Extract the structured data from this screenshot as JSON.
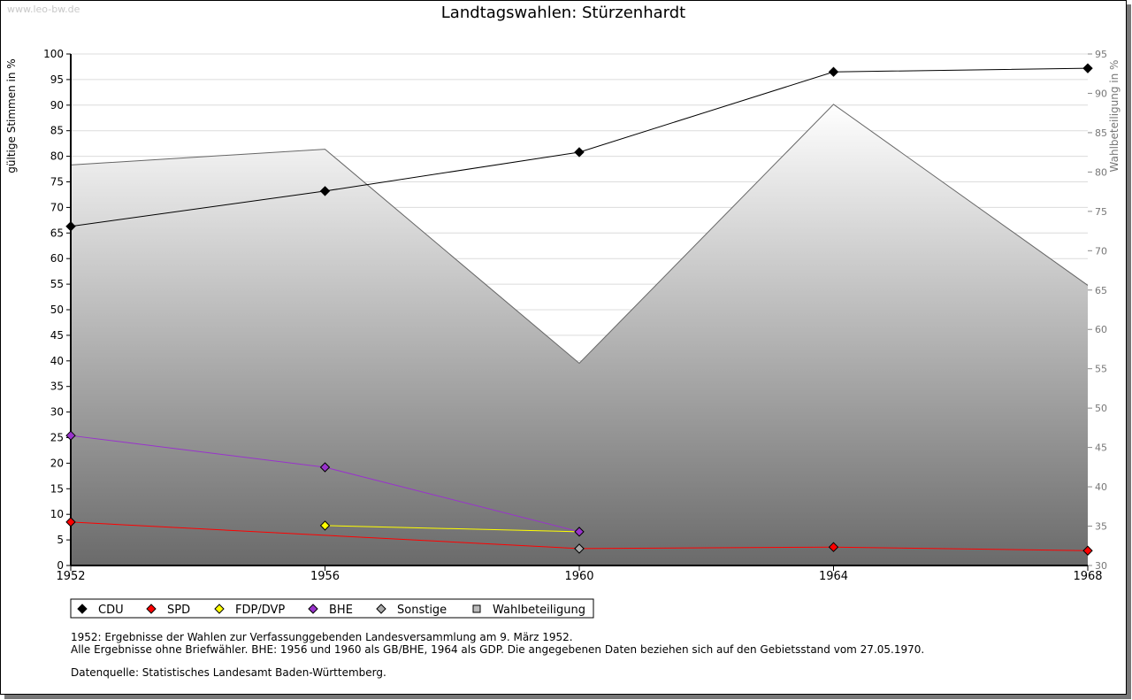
{
  "watermark": "www.leo-bw.de",
  "chart_data": {
    "type": "line",
    "title": "Landtagswahlen: Stürzenhardt",
    "ylabel": "gültige Stimmen in %",
    "y2label": "Wahlbeteiligung in %",
    "ylim": [
      0,
      100
    ],
    "y2lim": [
      30,
      95
    ],
    "yticks": [
      0,
      5,
      10,
      15,
      20,
      25,
      30,
      35,
      40,
      45,
      50,
      55,
      60,
      65,
      70,
      75,
      80,
      85,
      90,
      95,
      100
    ],
    "y2ticks": [
      30,
      35,
      40,
      45,
      50,
      55,
      60,
      65,
      70,
      75,
      80,
      85,
      90,
      95
    ],
    "x": [
      1952,
      1956,
      1960,
      1964,
      1968
    ],
    "grid": true,
    "legend_position": "bottom",
    "series": [
      {
        "name": "CDU",
        "color": "#000000",
        "values": [
          66.3,
          73.2,
          80.8,
          96.5,
          97.2
        ]
      },
      {
        "name": "SPD",
        "color": "#ff0000",
        "values": [
          8.5,
          null,
          3.3,
          3.6,
          2.9
        ],
        "markers": [
          true,
          false,
          true,
          true,
          true
        ]
      },
      {
        "name": "FDP/DVP",
        "color": "#ffff00",
        "values": [
          null,
          7.8,
          6.6,
          null,
          null
        ],
        "markers": [
          false,
          true,
          false,
          false,
          false
        ]
      },
      {
        "name": "BHE",
        "color": "#9933cc",
        "values": [
          25.4,
          19.2,
          6.6,
          null,
          null
        ]
      },
      {
        "name": "Sonstige",
        "color": "#aaaaaa",
        "values": [
          null,
          null,
          3.3,
          null,
          null
        ]
      },
      {
        "name": "Wahlbeteiligung",
        "color": "#bbbbbb",
        "axis": "right",
        "type": "area",
        "values": [
          80.9,
          82.9,
          55.7,
          88.6,
          65.6
        ]
      }
    ]
  },
  "notes": [
    "1952: Ergebnisse der Wahlen zur Verfassunggebenden Landesversammlung am 9. März 1952.",
    "Alle Ergebnisse ohne Briefwähler. BHE: 1956 und 1960 als GB/BHE, 1964 als GDP. Die angegebenen Daten beziehen sich auf den Gebietsstand vom 27.05.1970.",
    "Datenquelle: Statistisches Landesamt Baden-Württemberg."
  ]
}
